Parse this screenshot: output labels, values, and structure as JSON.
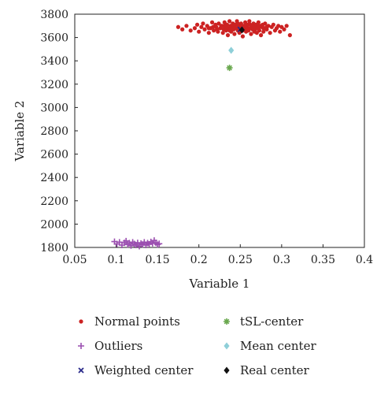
{
  "chart_data": {
    "type": "scatter",
    "xlabel": "Variable 1",
    "ylabel": "Variable 2",
    "xlim": [
      0.05,
      0.4
    ],
    "ylim": [
      1800,
      3800
    ],
    "xticks": [
      0.05,
      0.1,
      0.15,
      0.2,
      0.25,
      0.3,
      0.35,
      0.4
    ],
    "xtick_labels": [
      "0.05",
      "0.1",
      "0.15",
      "0.2",
      "0.25",
      "0.3",
      "0.35",
      "0.4"
    ],
    "yticks": [
      1800,
      2000,
      2200,
      2400,
      2600,
      2800,
      3000,
      3200,
      3400,
      3600,
      3800
    ],
    "ytick_labels": [
      "1800",
      "2000",
      "2200",
      "2400",
      "2600",
      "2800",
      "3000",
      "3200",
      "3400",
      "3600",
      "3800"
    ],
    "grid": false,
    "legend_position": "bottom",
    "series": [
      {
        "name": "Normal points",
        "marker": "circle",
        "color": "#cc2222",
        "points": [
          [
            0.175,
            3690
          ],
          [
            0.18,
            3670
          ],
          [
            0.185,
            3700
          ],
          [
            0.19,
            3660
          ],
          [
            0.195,
            3680
          ],
          [
            0.198,
            3710
          ],
          [
            0.2,
            3650
          ],
          [
            0.203,
            3690
          ],
          [
            0.205,
            3720
          ],
          [
            0.207,
            3670
          ],
          [
            0.21,
            3700
          ],
          [
            0.212,
            3640
          ],
          [
            0.214,
            3680
          ],
          [
            0.216,
            3730
          ],
          [
            0.218,
            3660
          ],
          [
            0.22,
            3710
          ],
          [
            0.221,
            3690
          ],
          [
            0.223,
            3650
          ],
          [
            0.224,
            3720
          ],
          [
            0.226,
            3680
          ],
          [
            0.227,
            3700
          ],
          [
            0.229,
            3640
          ],
          [
            0.23,
            3670
          ],
          [
            0.231,
            3730
          ],
          [
            0.232,
            3690
          ],
          [
            0.233,
            3660
          ],
          [
            0.234,
            3710
          ],
          [
            0.235,
            3620
          ],
          [
            0.236,
            3680
          ],
          [
            0.237,
            3740
          ],
          [
            0.238,
            3700
          ],
          [
            0.239,
            3650
          ],
          [
            0.24,
            3690
          ],
          [
            0.241,
            3720
          ],
          [
            0.242,
            3670
          ],
          [
            0.243,
            3630
          ],
          [
            0.244,
            3710
          ],
          [
            0.245,
            3680
          ],
          [
            0.246,
            3740
          ],
          [
            0.247,
            3660
          ],
          [
            0.248,
            3700
          ],
          [
            0.249,
            3640
          ],
          [
            0.25,
            3690
          ],
          [
            0.251,
            3720
          ],
          [
            0.252,
            3670
          ],
          [
            0.253,
            3610
          ],
          [
            0.254,
            3700
          ],
          [
            0.255,
            3680
          ],
          [
            0.256,
            3730
          ],
          [
            0.257,
            3650
          ],
          [
            0.258,
            3690
          ],
          [
            0.259,
            3710
          ],
          [
            0.26,
            3660
          ],
          [
            0.261,
            3740
          ],
          [
            0.262,
            3680
          ],
          [
            0.263,
            3630
          ],
          [
            0.264,
            3700
          ],
          [
            0.265,
            3670
          ],
          [
            0.266,
            3720
          ],
          [
            0.267,
            3650
          ],
          [
            0.268,
            3690
          ],
          [
            0.269,
            3710
          ],
          [
            0.27,
            3640
          ],
          [
            0.271,
            3680
          ],
          [
            0.272,
            3730
          ],
          [
            0.273,
            3660
          ],
          [
            0.274,
            3700
          ],
          [
            0.275,
            3620
          ],
          [
            0.276,
            3690
          ],
          [
            0.277,
            3710
          ],
          [
            0.278,
            3650
          ],
          [
            0.279,
            3680
          ],
          [
            0.28,
            3720
          ],
          [
            0.282,
            3670
          ],
          [
            0.284,
            3700
          ],
          [
            0.286,
            3640
          ],
          [
            0.288,
            3690
          ],
          [
            0.29,
            3710
          ],
          [
            0.292,
            3660
          ],
          [
            0.294,
            3680
          ],
          [
            0.296,
            3700
          ],
          [
            0.298,
            3650
          ],
          [
            0.3,
            3690
          ],
          [
            0.303,
            3670
          ],
          [
            0.306,
            3700
          ],
          [
            0.31,
            3620
          ],
          [
            0.228,
            3700
          ],
          [
            0.233,
            3690
          ],
          [
            0.238,
            3670
          ],
          [
            0.243,
            3690
          ],
          [
            0.248,
            3680
          ],
          [
            0.253,
            3660
          ],
          [
            0.258,
            3670
          ],
          [
            0.263,
            3690
          ],
          [
            0.268,
            3670
          ],
          [
            0.273,
            3690
          ],
          [
            0.278,
            3680
          ],
          [
            0.222,
            3670
          ],
          [
            0.217,
            3690
          ],
          [
            0.212,
            3680
          ],
          [
            0.232,
            3710
          ],
          [
            0.252,
            3700
          ],
          [
            0.262,
            3710
          ],
          [
            0.272,
            3700
          ],
          [
            0.282,
            3690
          ],
          [
            0.242,
            3700
          ],
          [
            0.247,
            3720
          ],
          [
            0.257,
            3700
          ],
          [
            0.267,
            3690
          ],
          [
            0.237,
            3660
          ]
        ]
      },
      {
        "name": "Outliers",
        "marker": "plus",
        "color": "#9b4fb0",
        "points": [
          [
            0.098,
            1850
          ],
          [
            0.101,
            1830
          ],
          [
            0.104,
            1845
          ],
          [
            0.107,
            1820
          ],
          [
            0.11,
            1840
          ],
          [
            0.112,
            1855
          ],
          [
            0.114,
            1825
          ],
          [
            0.116,
            1838
          ],
          [
            0.118,
            1815
          ],
          [
            0.12,
            1845
          ],
          [
            0.122,
            1830
          ],
          [
            0.124,
            1820
          ],
          [
            0.126,
            1840
          ],
          [
            0.128,
            1810
          ],
          [
            0.13,
            1835
          ],
          [
            0.132,
            1825
          ],
          [
            0.134,
            1845
          ],
          [
            0.136,
            1820
          ],
          [
            0.138,
            1838
          ],
          [
            0.14,
            1828
          ],
          [
            0.142,
            1848
          ],
          [
            0.144,
            1835
          ],
          [
            0.146,
            1860
          ],
          [
            0.148,
            1840
          ],
          [
            0.15,
            1825
          ],
          [
            0.152,
            1832
          ]
        ]
      },
      {
        "name": "Weighted center",
        "marker": "x",
        "color": "#2a2a8a",
        "points": [
          [
            0.25,
            3670
          ]
        ]
      },
      {
        "name": "tSL-center",
        "marker": "star",
        "color": "#6aa84f",
        "points": [
          [
            0.237,
            3340
          ]
        ]
      },
      {
        "name": "Mean center",
        "marker": "diamond",
        "color": "#8ecfd8",
        "points": [
          [
            0.239,
            3490
          ]
        ]
      },
      {
        "name": "Real center",
        "marker": "diamond",
        "color": "#111111",
        "points": [
          [
            0.252,
            3665
          ]
        ]
      }
    ]
  }
}
